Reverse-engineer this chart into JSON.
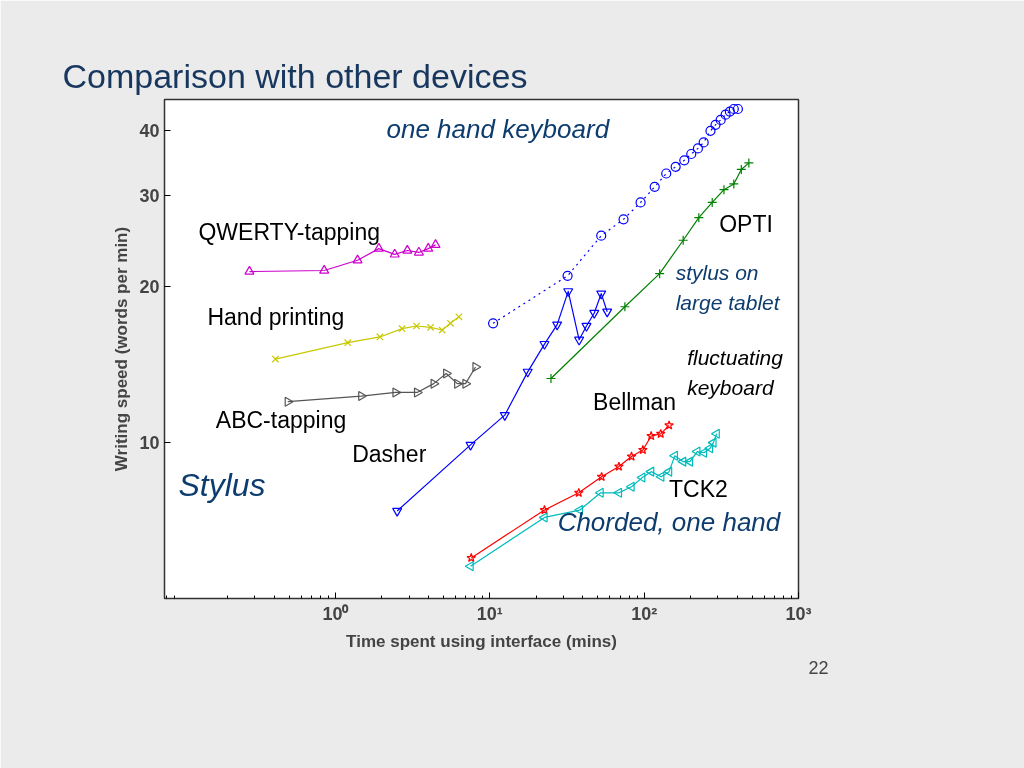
{
  "chart_data": {
    "type": "line",
    "title": "Comparison with other devices",
    "xlabel": "Time spent using interface (mins)",
    "ylabel": "Writing speed (words per min)",
    "log": "xy",
    "xlim": [
      0.078,
      1000
    ],
    "ylim": [
      5,
      46
    ],
    "xticks": [
      {
        "value": 1,
        "label": "10⁰"
      },
      {
        "value": 10,
        "label": "10¹"
      },
      {
        "value": 100,
        "label": "10²"
      },
      {
        "value": 1000,
        "label": "10³"
      }
    ],
    "yticks": [
      10,
      20,
      30,
      40
    ],
    "grid": false,
    "series": [
      {
        "name": "QWERTY-tapping",
        "color": "#cc00cc",
        "marker": "triangle",
        "line_style": "solid",
        "x": [
          0.277,
          0.845,
          1.39,
          1.91,
          2.42,
          2.92,
          3.47,
          3.99,
          4.45
        ],
        "values": [
          21.4,
          21.5,
          22.5,
          23.7,
          23.1,
          23.5,
          23.3,
          23.7,
          24.1
        ]
      },
      {
        "name": "Hand printing",
        "color": "#c8c800",
        "marker": "cross",
        "line_style": "solid",
        "x": [
          0.408,
          1.2,
          1.94,
          2.7,
          3.35,
          4.13,
          4.91,
          5.56,
          6.3
        ],
        "values": [
          14.5,
          15.6,
          16.0,
          16.6,
          16.8,
          16.7,
          16.5,
          17.0,
          17.5
        ]
      },
      {
        "name": "ABC-tapping",
        "color": "#555555",
        "marker": "triangle",
        "line_style": "solid",
        "x": [
          0.491,
          1.47,
          2.45,
          3.38,
          4.33,
          5.22,
          6.15,
          6.96,
          8.08
        ],
        "values": [
          12.0,
          12.3,
          12.5,
          12.5,
          13.0,
          13.6,
          13.0,
          13.0,
          14.0
        ]
      },
      {
        "name": "Dasher",
        "color": "#0000ff",
        "marker": "triangle",
        "line_style": "solid",
        "x": [
          2.51,
          7.5,
          12.5,
          17.6,
          22.6,
          27.3,
          32.2,
          37.9,
          42.3,
          47.5,
          52.7,
          57.6
        ],
        "values": [
          7.38,
          9.9,
          11.3,
          13.7,
          15.5,
          16.9,
          19.6,
          15.8,
          16.8,
          17.8,
          19.4,
          17.9
        ]
      },
      {
        "color": "#0000ff",
        "marker": "circle",
        "line_style": "dotted",
        "x": [
          10.5,
          31.9,
          52.7,
          73.5,
          94.8,
          117,
          139,
          160,
          182,
          202,
          223,
          243,
          269,
          290,
          313,
          337,
          359,
          381,
          405
        ],
        "values": [
          17.0,
          21.0,
          25.1,
          27.0,
          29.1,
          31.2,
          33.1,
          34.1,
          35.1,
          36.1,
          37.0,
          38.0,
          40.0,
          41.1,
          42.0,
          43.0,
          43.6,
          44.1,
          44.1
        ]
      },
      {
        "name": "OPTI",
        "color": "#008000",
        "marker": "cross",
        "line_style": "solid",
        "x": [
          24.9,
          75.0,
          126,
          179,
          226,
          276,
          329,
          381,
          426,
          477
        ],
        "values": [
          13.3,
          18.3,
          21.2,
          24.6,
          27.2,
          29.1,
          30.8,
          31.6,
          33.7,
          34.7
        ]
      },
      {
        "name": "Bellman",
        "color": "#ff0000",
        "marker": "star",
        "line_style": "solid",
        "x": [
          7.58,
          22.6,
          37.7,
          53.0,
          68.6,
          82.8,
          98.1,
          111,
          128,
          145
        ],
        "values": [
          5.99,
          7.41,
          8.0,
          8.59,
          8.99,
          9.4,
          9.68,
          10.3,
          10.4,
          10.8
        ]
      },
      {
        "name": "TCK2",
        "color": "#00bbbb",
        "marker": "triangle",
        "line_style": "solid",
        "x": [
          7.5,
          22.6,
          38.3,
          52.2,
          68.6,
          82.8,
          97.2,
          111,
          129,
          145,
          158,
          179,
          198,
          221,
          244,
          267,
          281,
          295
        ],
        "values": [
          5.77,
          7.17,
          7.41,
          8.0,
          8.0,
          8.22,
          8.56,
          8.79,
          8.59,
          8.79,
          9.43,
          9.19,
          9.19,
          9.61,
          9.56,
          9.75,
          10.0,
          10.4
        ]
      }
    ],
    "annotations": [
      "one hand keyboard",
      "stylus on\nlarge tablet",
      "fluctuating\nkeyboard",
      "Stylus",
      "Chorded, one hand",
      "22"
    ]
  }
}
